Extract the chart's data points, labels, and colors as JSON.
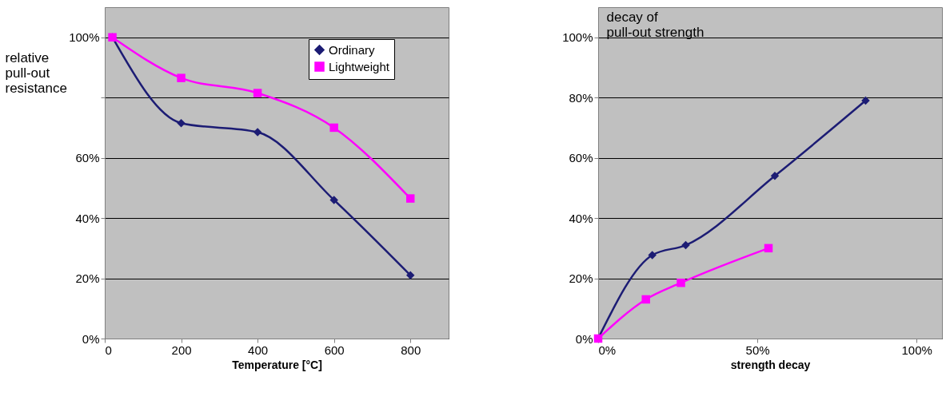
{
  "chart_data": [
    {
      "type": "line",
      "xlabel": "Temperature [°C]",
      "ylabel": "relative\npull-out\nresistance",
      "xlim": [
        0,
        900
      ],
      "xticks": [
        0,
        200,
        400,
        600,
        800
      ],
      "ylim": [
        0,
        110
      ],
      "yticks": [
        {
          "value": 0,
          "label": "0%"
        },
        {
          "value": 20,
          "label": "20%"
        },
        {
          "value": 40,
          "label": "40%"
        },
        {
          "value": 60,
          "label": "60%"
        },
        {
          "value": 80,
          "label": null
        },
        {
          "value": 100,
          "label": "100%"
        }
      ],
      "grid": "y",
      "legend": "top right",
      "line_style": "solid",
      "series": [
        {
          "name": "Ordinary",
          "color": "#1c1c74",
          "marker": "diamond",
          "x": [
            20,
            200,
            400,
            600,
            800
          ],
          "values": [
            100,
            71.5,
            68.5,
            46,
            21
          ]
        },
        {
          "name": "Lightweight",
          "color": "#ff00ff",
          "marker": "square",
          "x": [
            20,
            200,
            400,
            600,
            800
          ],
          "values": [
            100,
            86.5,
            81.5,
            70,
            46.5
          ]
        }
      ]
    },
    {
      "type": "line",
      "xlabel": "strength decay",
      "ylabel": "decay of\npull-out strength",
      "xlim": [
        0,
        108
      ],
      "xticks": [
        {
          "value": 0,
          "label": "0%"
        },
        {
          "value": 50,
          "label": "50%"
        },
        {
          "value": 100,
          "label": "100%"
        }
      ],
      "ylim": [
        0,
        110
      ],
      "yticks": [
        {
          "value": 0,
          "label": "0%"
        },
        {
          "value": 20,
          "label": "20%"
        },
        {
          "value": 40,
          "label": "40%"
        },
        {
          "value": 60,
          "label": "60%"
        },
        {
          "value": 80,
          "label": "80%"
        },
        {
          "value": 100,
          "label": "100%"
        }
      ],
      "grid": "y",
      "legend": "top left",
      "line_style": "solid",
      "series": [
        {
          "name": "Ordinary",
          "color": "#1c1c74",
          "marker": "diamond",
          "x": [
            0,
            17,
            27.5,
            55.5,
            84
          ],
          "values": [
            0,
            27.7,
            31,
            54,
            79
          ]
        },
        {
          "name": "Lightweight",
          "color": "#ff00ff",
          "marker": "square",
          "x": [
            0,
            15,
            26,
            53.5
          ],
          "values": [
            0,
            13,
            18.5,
            30
          ]
        }
      ]
    }
  ]
}
